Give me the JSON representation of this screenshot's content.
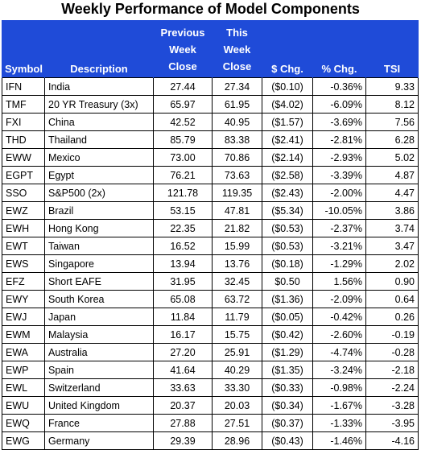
{
  "title": "Weekly Performance of Model Components",
  "headers": {
    "symbol": "Symbol",
    "description": "Description",
    "prev": [
      "Previous",
      "Week",
      "Close"
    ],
    "this": [
      "This",
      "Week",
      "Close"
    ],
    "dollar_chg": "$ Chg.",
    "pct_chg": "% Chg.",
    "tsi": "TSI"
  },
  "colors": {
    "header_bg": "#1f4bd8",
    "negative": "#c00000",
    "positive": "#00a651"
  },
  "rows": [
    {
      "symbol": "IFN",
      "description": "India",
      "prev": "27.44",
      "this": "27.34",
      "dchg": "($0.10)",
      "pchg": "-0.36%",
      "tsi": "9.33",
      "sign": "neg",
      "tsi_sign": "pos"
    },
    {
      "symbol": "TMF",
      "description": "20 YR Treasury (3x)",
      "prev": "65.97",
      "this": "61.95",
      "dchg": "($4.02)",
      "pchg": "-6.09%",
      "tsi": "8.12",
      "sign": "neg",
      "tsi_sign": "pos"
    },
    {
      "symbol": "FXI",
      "description": "China",
      "prev": "42.52",
      "this": "40.95",
      "dchg": "($1.57)",
      "pchg": "-3.69%",
      "tsi": "7.56",
      "sign": "neg",
      "tsi_sign": "pos"
    },
    {
      "symbol": "THD",
      "description": "Thailand",
      "prev": "85.79",
      "this": "83.38",
      "dchg": "($2.41)",
      "pchg": "-2.81%",
      "tsi": "6.28",
      "sign": "neg",
      "tsi_sign": "pos"
    },
    {
      "symbol": "EWW",
      "description": "Mexico",
      "prev": "73.00",
      "this": "70.86",
      "dchg": "($2.14)",
      "pchg": "-2.93%",
      "tsi": "5.02",
      "sign": "neg",
      "tsi_sign": "pos"
    },
    {
      "symbol": "EGPT",
      "description": "Egypt",
      "prev": "76.21",
      "this": "73.63",
      "dchg": "($2.58)",
      "pchg": "-3.39%",
      "tsi": "4.87",
      "sign": "neg",
      "tsi_sign": "pos"
    },
    {
      "symbol": "SSO",
      "description": "S&P500 (2x)",
      "prev": "121.78",
      "this": "119.35",
      "dchg": "($2.43)",
      "pchg": "-2.00%",
      "tsi": "4.47",
      "sign": "neg",
      "tsi_sign": "pos"
    },
    {
      "symbol": "EWZ",
      "description": "Brazil",
      "prev": "53.15",
      "this": "47.81",
      "dchg": "($5.34)",
      "pchg": "-10.05%",
      "tsi": "3.86",
      "sign": "neg",
      "tsi_sign": "pos"
    },
    {
      "symbol": "EWH",
      "description": "Hong Kong",
      "prev": "22.35",
      "this": "21.82",
      "dchg": "($0.53)",
      "pchg": "-2.37%",
      "tsi": "3.74",
      "sign": "neg",
      "tsi_sign": "pos"
    },
    {
      "symbol": "EWT",
      "description": "Taiwan",
      "prev": "16.52",
      "this": "15.99",
      "dchg": "($0.53)",
      "pchg": "-3.21%",
      "tsi": "3.47",
      "sign": "neg",
      "tsi_sign": "pos"
    },
    {
      "symbol": "EWS",
      "description": "Singapore",
      "prev": "13.94",
      "this": "13.76",
      "dchg": "($0.18)",
      "pchg": "-1.29%",
      "tsi": "2.02",
      "sign": "neg",
      "tsi_sign": "pos"
    },
    {
      "symbol": "EFZ",
      "description": "Short EAFE",
      "prev": "31.95",
      "this": "32.45",
      "dchg": "$0.50",
      "pchg": "1.56%",
      "tsi": "0.90",
      "sign": "pos",
      "tsi_sign": "pos"
    },
    {
      "symbol": "EWY",
      "description": "South Korea",
      "prev": "65.08",
      "this": "63.72",
      "dchg": "($1.36)",
      "pchg": "-2.09%",
      "tsi": "0.64",
      "sign": "neg",
      "tsi_sign": "pos"
    },
    {
      "symbol": "EWJ",
      "description": "Japan",
      "prev": "11.84",
      "this": "11.79",
      "dchg": "($0.05)",
      "pchg": "-0.42%",
      "tsi": "0.26",
      "sign": "neg",
      "tsi_sign": "pos"
    },
    {
      "symbol": "EWM",
      "description": "Malaysia",
      "prev": "16.17",
      "this": "15.75",
      "dchg": "($0.42)",
      "pchg": "-2.60%",
      "tsi": "-0.19",
      "sign": "neg",
      "tsi_sign": "neg"
    },
    {
      "symbol": "EWA",
      "description": "Australia",
      "prev": "27.20",
      "this": "25.91",
      "dchg": "($1.29)",
      "pchg": "-4.74%",
      "tsi": "-0.28",
      "sign": "neg",
      "tsi_sign": "neg"
    },
    {
      "symbol": "EWP",
      "description": "Spain",
      "prev": "41.64",
      "this": "40.29",
      "dchg": "($1.35)",
      "pchg": "-3.24%",
      "tsi": "-2.18",
      "sign": "neg",
      "tsi_sign": "neg"
    },
    {
      "symbol": "EWL",
      "description": "Switzerland",
      "prev": "33.63",
      "this": "33.30",
      "dchg": "($0.33)",
      "pchg": "-0.98%",
      "tsi": "-2.24",
      "sign": "neg",
      "tsi_sign": "neg"
    },
    {
      "symbol": "EWU",
      "description": "United Kingdom",
      "prev": "20.37",
      "this": "20.03",
      "dchg": "($0.34)",
      "pchg": "-1.67%",
      "tsi": "-3.28",
      "sign": "neg",
      "tsi_sign": "neg"
    },
    {
      "symbol": "EWQ",
      "description": "France",
      "prev": "27.88",
      "this": "27.51",
      "dchg": "($0.37)",
      "pchg": "-1.33%",
      "tsi": "-3.95",
      "sign": "neg",
      "tsi_sign": "neg"
    },
    {
      "symbol": "EWG",
      "description": "Germany",
      "prev": "29.39",
      "this": "28.96",
      "dchg": "($0.43)",
      "pchg": "-1.46%",
      "tsi": "-4.16",
      "sign": "neg",
      "tsi_sign": "neg"
    }
  ]
}
